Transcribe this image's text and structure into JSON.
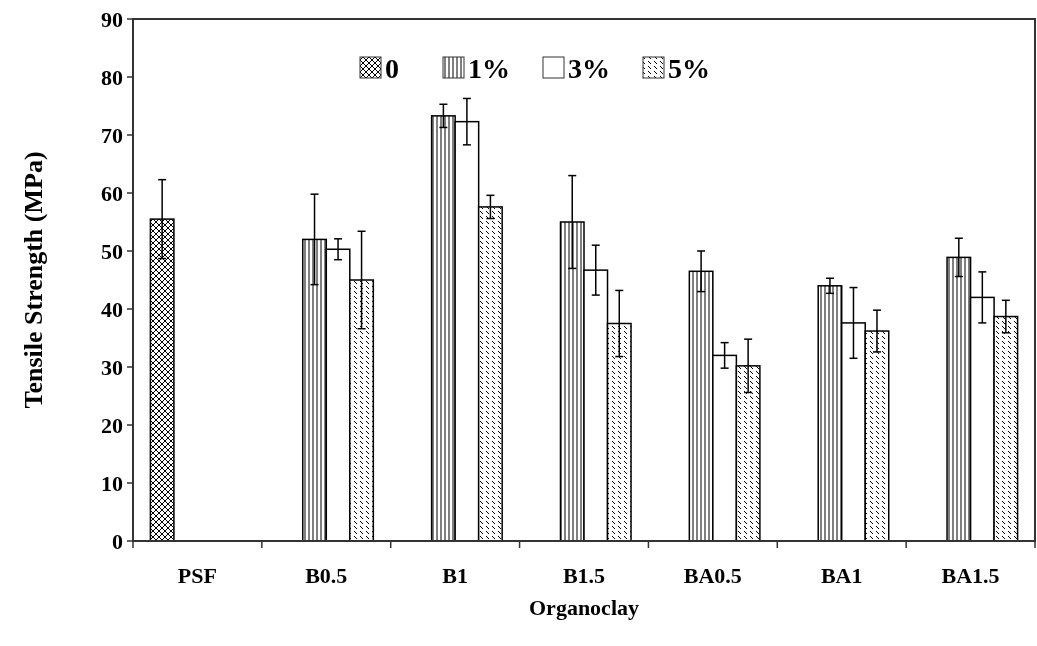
{
  "chart_data": {
    "type": "bar",
    "xlabel": "Organoclay",
    "ylabel": "Tensile Strength (MPa)",
    "categories": [
      "PSF",
      "B0.5",
      "B1",
      "B1.5",
      "BA0.5",
      "BA1",
      "BA1.5"
    ],
    "series": [
      {
        "name": "0",
        "color": "#000000",
        "values": [
          55.5,
          null,
          null,
          null,
          null,
          null,
          null
        ],
        "errors": [
          6.8,
          null,
          null,
          null,
          null,
          null,
          null
        ]
      },
      {
        "name": "1%",
        "color": "#000000",
        "values": [
          null,
          52,
          73.3,
          55,
          46.5,
          44,
          48.9
        ],
        "errors": [
          null,
          7.8,
          2,
          8,
          3.5,
          1.3,
          3.3
        ]
      },
      {
        "name": "3%",
        "color": "#000000",
        "values": [
          null,
          50.3,
          72.3,
          46.7,
          32,
          37.6,
          42
        ],
        "errors": [
          null,
          1.8,
          4,
          4.3,
          2.2,
          6.1,
          4.4
        ]
      },
      {
        "name": "5%",
        "color": "#000000",
        "values": [
          null,
          45,
          57.6,
          37.5,
          30.2,
          36.2,
          38.7
        ],
        "errors": [
          null,
          8.4,
          2,
          5.7,
          4.6,
          3.6,
          2.8
        ]
      }
    ],
    "ylim": [
      0,
      90
    ],
    "yticks": [
      0,
      10,
      20,
      30,
      40,
      50,
      60,
      70,
      80,
      90
    ],
    "grid": false,
    "legend": "top"
  }
}
